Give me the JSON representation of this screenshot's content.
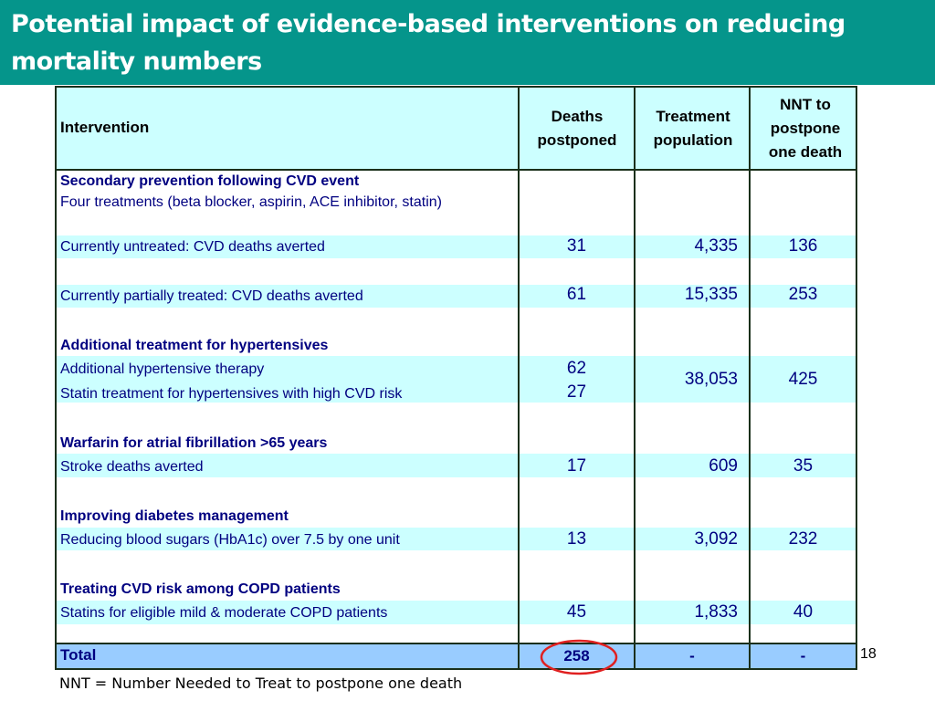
{
  "slide": {
    "title": "Potential impact of evidence-based interventions on reducing mortality numbers",
    "footnote": "NNT = Number Needed to Treat to postpone one death",
    "page_number": "18"
  },
  "table": {
    "headers": {
      "intervention": "Intervention",
      "deaths": "Deaths postponed",
      "population": "Treatment population",
      "nnt": "NNT to postpone one death"
    },
    "sec1": {
      "heading": "Secondary prevention following CVD event",
      "subheading": "Four treatments (beta blocker, aspirin, ACE inhibitor, statin)",
      "row1": {
        "label": "Currently untreated: CVD deaths averted",
        "deaths": "31",
        "population": "4,335",
        "nnt": "136"
      },
      "row2": {
        "label": "Currently partially treated: CVD deaths averted",
        "deaths": "61",
        "population": "15,335",
        "nnt": "253"
      }
    },
    "sec2": {
      "heading": "Additional treatment for hypertensives",
      "row1": {
        "label": "Additional hypertensive therapy",
        "deaths": "62"
      },
      "row2": {
        "label": "Statin treatment for hypertensives with high CVD risk",
        "deaths": "27"
      },
      "population": "38,053",
      "nnt": "425"
    },
    "sec3": {
      "heading": "Warfarin for atrial fibrillation >65 years",
      "row1": {
        "label": "Stroke deaths averted",
        "deaths": "17",
        "population": "609",
        "nnt": "35"
      }
    },
    "sec4": {
      "heading": "Improving diabetes management",
      "row1": {
        "label": "Reducing blood sugars (HbA1c) over 7.5 by one unit",
        "deaths": "13",
        "population": "3,092",
        "nnt": "232"
      }
    },
    "sec5": {
      "heading": "Treating CVD risk among COPD patients",
      "row1": {
        "label": "Statins for eligible mild & moderate COPD patients",
        "deaths": "45",
        "population": "1,833",
        "nnt": "40"
      }
    },
    "total": {
      "label": "Total",
      "deaths": "258",
      "population": "-",
      "nnt": "-"
    }
  },
  "colors": {
    "title_bar": "#05958b",
    "cell_highlight": "#ccffff",
    "total_row": "#99ccff",
    "text": "#000080",
    "circle": "#e02020"
  }
}
